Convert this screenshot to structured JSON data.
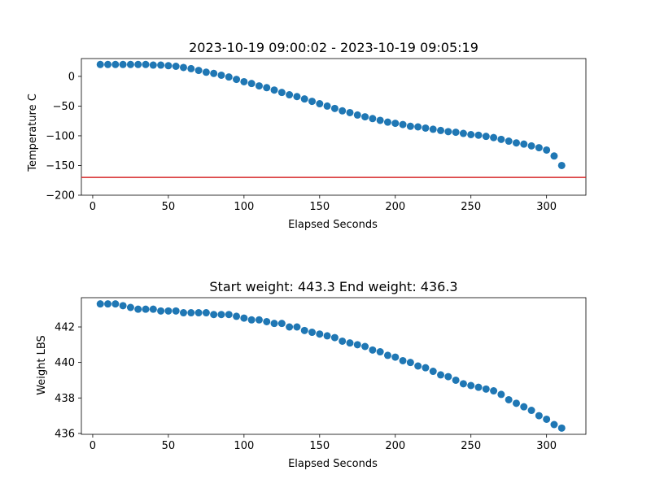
{
  "chart_data": [
    {
      "type": "scatter",
      "title": "2023-10-19 09:00:02 - 2023-10-19 09:05:19",
      "xlabel": "Elapsed Seconds",
      "ylabel": "Temperature C",
      "xlim": [
        -7.5,
        326
      ],
      "ylim": [
        -200,
        30
      ],
      "xticks": [
        0,
        50,
        100,
        150,
        200,
        250,
        300
      ],
      "yticks": [
        -200,
        -150,
        -100,
        -50,
        0
      ],
      "marker_color": "#1f77b4",
      "grid": false,
      "reference_line": {
        "y": -170,
        "color": "#d62728"
      },
      "x": [
        5,
        10,
        15,
        20,
        25,
        30,
        35,
        40,
        45,
        50,
        55,
        60,
        65,
        70,
        75,
        80,
        85,
        90,
        95,
        100,
        105,
        110,
        115,
        120,
        125,
        130,
        135,
        140,
        145,
        150,
        155,
        160,
        165,
        170,
        175,
        180,
        185,
        190,
        195,
        200,
        205,
        210,
        215,
        220,
        225,
        230,
        235,
        240,
        245,
        250,
        255,
        260,
        265,
        270,
        275,
        280,
        285,
        290,
        295,
        300,
        305,
        310
      ],
      "y": [
        20,
        20,
        20,
        20,
        20,
        20,
        20,
        19,
        19,
        18,
        17,
        15,
        13,
        10,
        7,
        5,
        2,
        -1,
        -5,
        -9,
        -12,
        -16,
        -19,
        -23,
        -27,
        -31,
        -34,
        -38,
        -42,
        -46,
        -50,
        -54,
        -58,
        -61,
        -65,
        -68,
        -71,
        -74,
        -77,
        -79,
        -81,
        -84,
        -85,
        -87,
        -89,
        -91,
        -93,
        -94,
        -96,
        -98,
        -99,
        -101,
        -103,
        -106,
        -109,
        -112,
        -114,
        -117,
        -120,
        -124,
        -134,
        -150
      ]
    },
    {
      "type": "scatter",
      "title": "Start weight: 443.3 End weight: 436.3",
      "xlabel": "Elapsed Seconds",
      "ylabel": "Weight LBS",
      "xlim": [
        -7.5,
        326
      ],
      "ylim": [
        435.95,
        443.65
      ],
      "xticks": [
        0,
        50,
        100,
        150,
        200,
        250,
        300
      ],
      "yticks": [
        436,
        438,
        440,
        442
      ],
      "marker_color": "#1f77b4",
      "grid": false,
      "x": [
        5,
        10,
        15,
        20,
        25,
        30,
        35,
        40,
        45,
        50,
        55,
        60,
        65,
        70,
        75,
        80,
        85,
        90,
        95,
        100,
        105,
        110,
        115,
        120,
        125,
        130,
        135,
        140,
        145,
        150,
        155,
        160,
        165,
        170,
        175,
        180,
        185,
        190,
        195,
        200,
        205,
        210,
        215,
        220,
        225,
        230,
        235,
        240,
        245,
        250,
        255,
        260,
        265,
        270,
        275,
        280,
        285,
        290,
        295,
        300,
        305,
        310
      ],
      "y": [
        443.3,
        443.3,
        443.3,
        443.2,
        443.1,
        443.0,
        443.0,
        443.0,
        442.9,
        442.9,
        442.9,
        442.8,
        442.8,
        442.8,
        442.8,
        442.7,
        442.7,
        442.7,
        442.6,
        442.5,
        442.4,
        442.4,
        442.3,
        442.2,
        442.2,
        442.0,
        442.0,
        441.8,
        441.7,
        441.6,
        441.5,
        441.4,
        441.2,
        441.1,
        441.0,
        440.9,
        440.7,
        440.6,
        440.4,
        440.3,
        440.1,
        440.0,
        439.8,
        439.7,
        439.5,
        439.3,
        439.2,
        439.0,
        438.8,
        438.7,
        438.6,
        438.5,
        438.4,
        438.2,
        437.9,
        437.7,
        437.5,
        437.3,
        437.0,
        436.8,
        436.5,
        436.3
      ]
    }
  ]
}
